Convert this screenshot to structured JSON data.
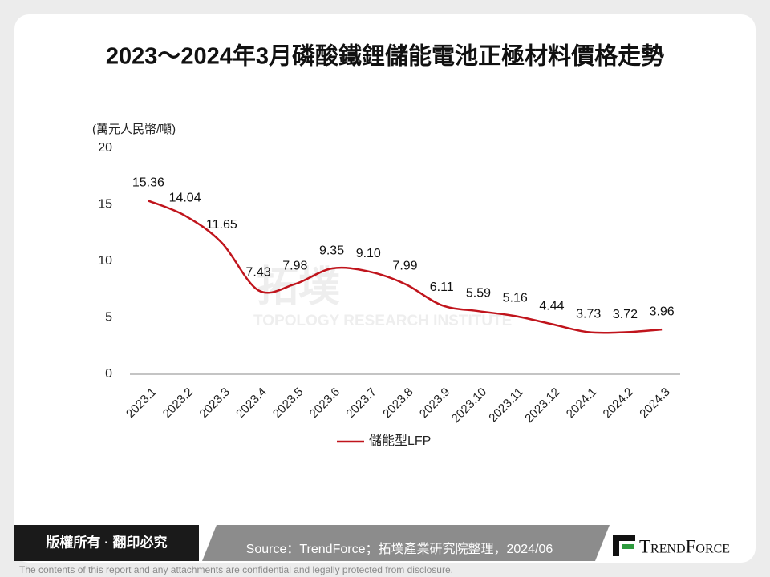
{
  "chart_data": {
    "type": "line",
    "title": "2023～2024年3月磷酸鐵鋰儲能電池正極材料價格走勢",
    "y_label": "(萬元人民幣/噸)",
    "categories": [
      "2023.1",
      "2023.2",
      "2023.3",
      "2023.4",
      "2023.5",
      "2023.6",
      "2023.7",
      "2023.8",
      "2023.9",
      "2023.10",
      "2023.11",
      "2023.12",
      "2024.1",
      "2024.2",
      "2024.3"
    ],
    "series": [
      {
        "name": "儲能型LFP",
        "color": "#c0141c",
        "values": [
          15.36,
          14.04,
          11.65,
          7.43,
          7.98,
          9.35,
          9.1,
          7.99,
          6.11,
          5.59,
          5.16,
          4.44,
          3.73,
          3.72,
          3.96
        ],
        "value_labels": [
          "15.36",
          "14.04",
          "11.65",
          "7.43",
          "7.98",
          "9.35",
          "9.10",
          "7.99",
          "6.11",
          "5.59",
          "5.16",
          "4.44",
          "3.73",
          "3.72",
          "3.96"
        ]
      }
    ],
    "ylim": [
      0,
      20
    ],
    "yticks": [
      0,
      5,
      10,
      15,
      20
    ],
    "grid": false,
    "legend": "bottom"
  },
  "watermark": {
    "name": "拓墣",
    "org": "TOPOLOGY RESEARCH INSTITUTE"
  },
  "footer": {
    "copyright": "版權所有 · 翻印必究",
    "source": "Source：TrendForce；拓墣產業研究院整理，2024/06",
    "logo": "TrendForce",
    "disclaimer": "The contents of this report and any attachments are confidential and legally protected from disclosure."
  }
}
